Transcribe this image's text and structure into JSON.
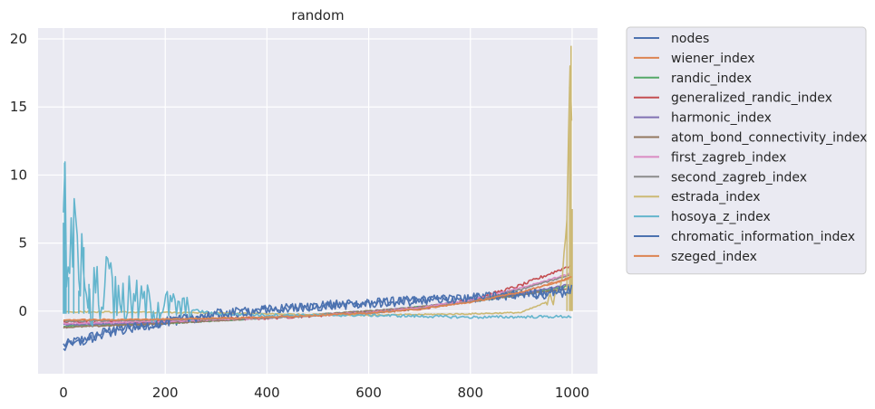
{
  "chart_data": {
    "type": "line",
    "title": "random",
    "xlabel": "",
    "ylabel": "",
    "xlim": [
      -50,
      1050
    ],
    "ylim": [
      -4.6,
      20.8
    ],
    "x_ticks": [
      0,
      200,
      400,
      600,
      800,
      1000
    ],
    "y_ticks": [
      0,
      5,
      10,
      15,
      20
    ],
    "grid": true,
    "legend_position": "outside-right-top",
    "series": [
      {
        "name": "nodes",
        "color": "#4C72B0",
        "points": [
          [
            0,
            -2.5
          ],
          [
            100,
            -1.3
          ],
          [
            200,
            -0.8
          ],
          [
            300,
            -0.3
          ],
          [
            400,
            0.1
          ],
          [
            500,
            0.4
          ],
          [
            600,
            0.6
          ],
          [
            700,
            0.8
          ],
          [
            800,
            1.0
          ],
          [
            900,
            1.2
          ],
          [
            1000,
            1.3
          ]
        ]
      },
      {
        "name": "wiener_index",
        "color": "#DD8452",
        "points": [
          [
            0,
            -0.7
          ],
          [
            200,
            -0.6
          ],
          [
            400,
            -0.45
          ],
          [
            600,
            -0.15
          ],
          [
            700,
            0.2
          ],
          [
            800,
            0.7
          ],
          [
            900,
            1.4
          ],
          [
            1000,
            2.4
          ]
        ]
      },
      {
        "name": "randic_index",
        "color": "#55A868",
        "points": [
          [
            0,
            -1.1
          ],
          [
            200,
            -0.9
          ],
          [
            400,
            -0.5
          ],
          [
            600,
            0.0
          ],
          [
            700,
            0.3
          ],
          [
            800,
            0.7
          ],
          [
            900,
            1.2
          ],
          [
            1000,
            1.9
          ]
        ]
      },
      {
        "name": "generalized_randic_index",
        "color": "#C44E52",
        "points": [
          [
            0,
            -0.8
          ],
          [
            200,
            -0.7
          ],
          [
            400,
            -0.5
          ],
          [
            600,
            -0.1
          ],
          [
            700,
            0.2
          ],
          [
            800,
            0.8
          ],
          [
            900,
            1.9
          ],
          [
            1000,
            3.4
          ]
        ]
      },
      {
        "name": "harmonic_index",
        "color": "#8172B3",
        "points": [
          [
            0,
            -1.0
          ],
          [
            200,
            -0.85
          ],
          [
            400,
            -0.5
          ],
          [
            600,
            0.0
          ],
          [
            700,
            0.3
          ],
          [
            800,
            0.75
          ],
          [
            900,
            1.3
          ],
          [
            1000,
            2.0
          ]
        ]
      },
      {
        "name": "atom_bond_connectivity_index",
        "color": "#937860",
        "points": [
          [
            0,
            -1.2
          ],
          [
            200,
            -0.9
          ],
          [
            400,
            -0.5
          ],
          [
            600,
            0.0
          ],
          [
            700,
            0.3
          ],
          [
            800,
            0.7
          ],
          [
            900,
            1.2
          ],
          [
            1000,
            1.7
          ]
        ]
      },
      {
        "name": "first_zagreb_index",
        "color": "#DA8BC3",
        "points": [
          [
            0,
            -0.9
          ],
          [
            200,
            -0.75
          ],
          [
            400,
            -0.5
          ],
          [
            600,
            -0.1
          ],
          [
            700,
            0.25
          ],
          [
            800,
            0.8
          ],
          [
            900,
            1.7
          ],
          [
            1000,
            2.8
          ]
        ]
      },
      {
        "name": "second_zagreb_index",
        "color": "#8C8C8C",
        "points": [
          [
            0,
            -0.75
          ],
          [
            200,
            -0.65
          ],
          [
            400,
            -0.5
          ],
          [
            600,
            -0.15
          ],
          [
            700,
            0.15
          ],
          [
            800,
            0.7
          ],
          [
            900,
            1.6
          ],
          [
            1000,
            2.7
          ]
        ]
      },
      {
        "name": "estrada_index",
        "color": "#CCB974",
        "points": [
          [
            0,
            -0.05
          ],
          [
            200,
            -0.1
          ],
          [
            400,
            -0.2
          ],
          [
            600,
            -0.3
          ],
          [
            800,
            -0.2
          ],
          [
            900,
            -0.1
          ],
          [
            960,
            0.8
          ],
          [
            980,
            2.5
          ],
          [
            990,
            7.0
          ],
          [
            995,
            16.5
          ],
          [
            998,
            19.5
          ],
          [
            1000,
            7.5
          ]
        ]
      },
      {
        "name": "hosoya_z_index",
        "color": "#64B5CD",
        "points": [
          [
            0,
            6.5
          ],
          [
            2,
            10.9
          ],
          [
            5,
            4.5
          ],
          [
            10,
            2.5
          ],
          [
            20,
            6.8
          ],
          [
            30,
            1.5
          ],
          [
            40,
            4.7
          ],
          [
            50,
            2.0
          ],
          [
            60,
            1.0
          ],
          [
            80,
            2.0
          ],
          [
            100,
            1.0
          ],
          [
            150,
            0.5
          ],
          [
            200,
            0.4
          ],
          [
            250,
            0.1
          ],
          [
            300,
            -0.2
          ],
          [
            400,
            -0.3
          ],
          [
            600,
            -0.3
          ],
          [
            800,
            -0.45
          ],
          [
            1000,
            -0.4
          ]
        ]
      },
      {
        "name": "chromatic_information_index",
        "color": "#4C72B0",
        "points": [
          [
            0,
            -2.7
          ],
          [
            100,
            -1.5
          ],
          [
            200,
            -0.8
          ],
          [
            300,
            -0.2
          ],
          [
            400,
            0.1
          ],
          [
            500,
            0.35
          ],
          [
            600,
            0.55
          ],
          [
            700,
            0.75
          ],
          [
            800,
            0.95
          ],
          [
            900,
            1.25
          ],
          [
            1000,
            1.6
          ]
        ]
      },
      {
        "name": "szeged_index",
        "color": "#DD8452",
        "points": [
          [
            0,
            -0.65
          ],
          [
            200,
            -0.6
          ],
          [
            400,
            -0.45
          ],
          [
            600,
            -0.15
          ],
          [
            700,
            0.15
          ],
          [
            800,
            0.65
          ],
          [
            900,
            1.4
          ],
          [
            1000,
            2.5
          ]
        ]
      }
    ]
  }
}
